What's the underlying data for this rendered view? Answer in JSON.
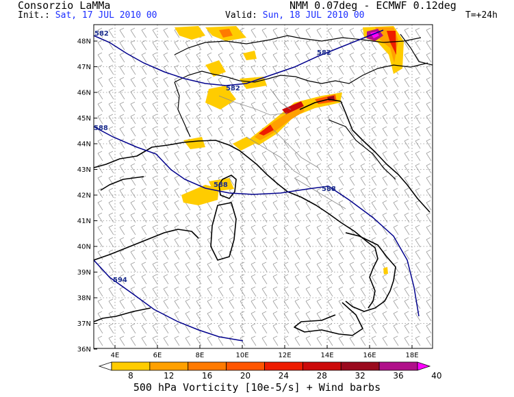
{
  "header": {
    "org": "Consorzio LaMMa",
    "model": "NMM 0.07deg - ECMWF 0.12deg",
    "init_label": "Init.:",
    "init_value": "Sat, 17 JUL 2010  00",
    "valid_label": "Valid:",
    "valid_value": "Sun, 18 JUL 2010  00",
    "lead": "T=+24h"
  },
  "axes": {
    "lat_labels": [
      "48N",
      "47N",
      "46N",
      "45N",
      "44N",
      "43N",
      "42N",
      "41N",
      "40N",
      "39N",
      "38N",
      "37N",
      "36N"
    ],
    "lon_labels": [
      "4E",
      "6E",
      "8E",
      "10E",
      "12E",
      "14E",
      "16E",
      "18E"
    ]
  },
  "contours": {
    "labels": [
      "582",
      "582",
      "582",
      "588",
      "588",
      "588",
      "594"
    ]
  },
  "colorbar": {
    "levels": [
      "8",
      "12",
      "16",
      "20",
      "24",
      "28",
      "32",
      "36",
      "40"
    ],
    "colors": [
      "#ffcc00",
      "#ffa000",
      "#ff7a00",
      "#ff5500",
      "#ee1c00",
      "#cc0a0a",
      "#9a0a1e",
      "#b0108a",
      "#ff00ff"
    ],
    "caption": "500 hPa Vorticity [10e-5/s] + Wind barbs"
  }
}
